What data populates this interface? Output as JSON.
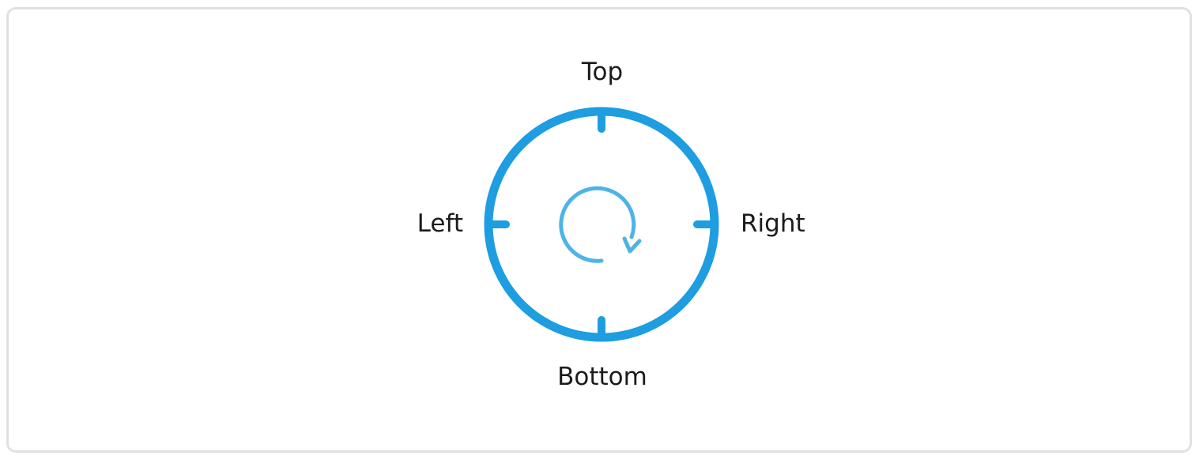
{
  "labels": {
    "top": "Top",
    "right": "Right",
    "bottom": "Bottom",
    "left": "Left"
  },
  "colors": {
    "ring": "#1e9de0",
    "rotate_icon": "#4fb3e6",
    "frame_border": "#e1e1e1",
    "text": "#1b1b1b"
  },
  "icons": {
    "center": "rotate-clockwise-icon"
  }
}
